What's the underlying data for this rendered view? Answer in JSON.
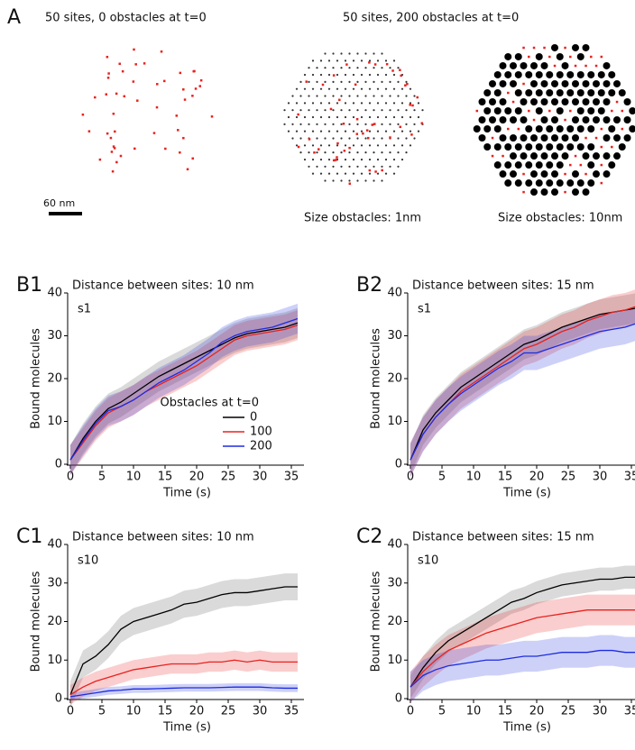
{
  "panel_a": {
    "label": "A",
    "title_left": "50 sites, 0 obstacles at t=0",
    "title_right": "50 sites, 200 obstacles at t=0",
    "scale_bar": "60 nm",
    "caption_mid": "Size obstacles: 1nm",
    "caption_right": "Size obstacles: 10nm"
  },
  "chart_data": [
    {
      "type": "line",
      "panel": "B1",
      "title": "Distance between sites: 10 nm",
      "annotation": "s1",
      "xlabel": "Time (s)",
      "ylabel": "Bound molecules",
      "x": [
        0,
        2,
        4,
        6,
        8,
        10,
        12,
        14,
        16,
        18,
        20,
        22,
        24,
        26,
        28,
        30,
        32,
        34,
        36
      ],
      "xlim": [
        0,
        37
      ],
      "xticks": [
        0,
        5,
        10,
        15,
        20,
        25,
        30,
        35
      ],
      "ylim": [
        0,
        40
      ],
      "yticks": [
        0,
        10,
        20,
        30,
        40
      ],
      "legend": "lower right",
      "legend_title": "Obstacles at t=0",
      "series": [
        {
          "name": "0",
          "color": "#000000",
          "error": 3.5,
          "values": [
            1,
            6,
            10,
            13,
            14.5,
            16.5,
            18.5,
            20.5,
            22,
            23.5,
            25,
            26.5,
            28,
            29.5,
            30.5,
            31,
            31.5,
            32,
            33
          ]
        },
        {
          "name": "100",
          "color": "#e8221e",
          "error": 3.5,
          "values": [
            1,
            5,
            9,
            12,
            13.5,
            15,
            17,
            18.5,
            20,
            21.5,
            23,
            25,
            27,
            29,
            30,
            30.5,
            31,
            31.5,
            32.5
          ]
        },
        {
          "name": "200",
          "color": "#1d2ce0",
          "error": 3.5,
          "values": [
            1,
            5.5,
            9.5,
            12.5,
            13.5,
            15,
            17,
            19,
            20.5,
            22,
            24,
            26,
            28.5,
            30,
            31,
            31.5,
            32,
            33,
            34
          ]
        }
      ]
    },
    {
      "type": "line",
      "panel": "B2",
      "title": "Distance between sites: 15 nm",
      "annotation": "s1",
      "xlabel": "Time (s)",
      "ylabel": "Bound molecules",
      "x": [
        0,
        2,
        4,
        6,
        8,
        10,
        12,
        14,
        16,
        18,
        20,
        22,
        24,
        26,
        28,
        30,
        32,
        34,
        36
      ],
      "xlim": [
        0,
        37
      ],
      "xticks": [
        0,
        5,
        10,
        15,
        20,
        25,
        30,
        35
      ],
      "ylim": [
        0,
        40
      ],
      "yticks": [
        0,
        10,
        20,
        30,
        40
      ],
      "series": [
        {
          "color": "#000000",
          "error": 3.5,
          "values": [
            1,
            8,
            12,
            15,
            18,
            20,
            22,
            24,
            26,
            28,
            29,
            30.5,
            32,
            33,
            34,
            35,
            35.5,
            36,
            36.5
          ]
        },
        {
          "color": "#e8221e",
          "error": 4,
          "values": [
            1,
            7,
            11,
            14,
            17,
            19,
            21,
            23,
            25,
            27,
            28,
            29.5,
            31,
            32,
            33.5,
            34.5,
            35.5,
            36,
            37
          ]
        },
        {
          "color": "#1d2ce0",
          "error": 4,
          "values": [
            1,
            7,
            11,
            14,
            16.5,
            18.5,
            20.5,
            22.5,
            24,
            26,
            26,
            27,
            28,
            29,
            30,
            31,
            31.5,
            32,
            33
          ]
        }
      ]
    },
    {
      "type": "line",
      "panel": "C1",
      "title": "Distance between sites: 10 nm",
      "annotation": "s10",
      "xlabel": "Time (s)",
      "ylabel": "Bound molecules",
      "x": [
        0,
        2,
        4,
        6,
        8,
        10,
        12,
        14,
        16,
        18,
        20,
        22,
        24,
        26,
        28,
        30,
        32,
        34,
        36
      ],
      "xlim": [
        0,
        37
      ],
      "xticks": [
        0,
        5,
        10,
        15,
        20,
        25,
        30,
        35
      ],
      "ylim": [
        0,
        40
      ],
      "yticks": [
        0,
        10,
        20,
        30,
        40
      ],
      "series": [
        {
          "color": "#000000",
          "error": 3.5,
          "values": [
            1,
            9,
            11,
            14,
            18,
            20,
            21,
            22,
            23,
            24.5,
            25,
            26,
            27,
            27.5,
            27.5,
            28,
            28.5,
            29,
            29
          ]
        },
        {
          "color": "#e8221e",
          "error": 2.5,
          "values": [
            1,
            3,
            4.5,
            5.5,
            6.5,
            7.5,
            8,
            8.5,
            9,
            9,
            9,
            9.5,
            9.5,
            10,
            9.5,
            10,
            9.5,
            9.5,
            9.5
          ]
        },
        {
          "color": "#1d2ce0",
          "error": 1,
          "values": [
            0.5,
            1,
            1.5,
            2,
            2.2,
            2.5,
            2.5,
            2.6,
            2.7,
            2.8,
            2.8,
            2.8,
            2.9,
            3,
            3,
            3,
            2.8,
            2.7,
            2.7
          ]
        }
      ]
    },
    {
      "type": "line",
      "panel": "C2",
      "title": "Distance between sites: 15 nm",
      "annotation": "s10",
      "xlabel": "Time (s)",
      "ylabel": "Bound molecules",
      "x": [
        0,
        2,
        4,
        6,
        8,
        10,
        12,
        14,
        16,
        18,
        20,
        22,
        24,
        26,
        28,
        30,
        32,
        34,
        36
      ],
      "xlim": [
        0,
        37
      ],
      "xticks": [
        0,
        5,
        10,
        15,
        20,
        25,
        30,
        35
      ],
      "ylim": [
        0,
        40
      ],
      "yticks": [
        0,
        10,
        20,
        30,
        40
      ],
      "series": [
        {
          "color": "#000000",
          "error": 3,
          "values": [
            3,
            8,
            12,
            15,
            17,
            19,
            21,
            23,
            25,
            26,
            27.5,
            28.5,
            29.5,
            30,
            30.5,
            31,
            31,
            31.5,
            31.5
          ]
        },
        {
          "color": "#e8221e",
          "error": 4,
          "values": [
            3,
            7,
            10,
            12.5,
            14,
            15.5,
            17,
            18,
            19,
            20,
            21,
            21.5,
            22,
            22.5,
            23,
            23,
            23,
            23,
            23
          ]
        },
        {
          "color": "#1d2ce0",
          "error": 4,
          "values": [
            3,
            6,
            7.5,
            8.5,
            9,
            9.5,
            10,
            10,
            10.5,
            11,
            11,
            11.5,
            12,
            12,
            12,
            12.5,
            12.5,
            12,
            12
          ]
        }
      ]
    }
  ]
}
